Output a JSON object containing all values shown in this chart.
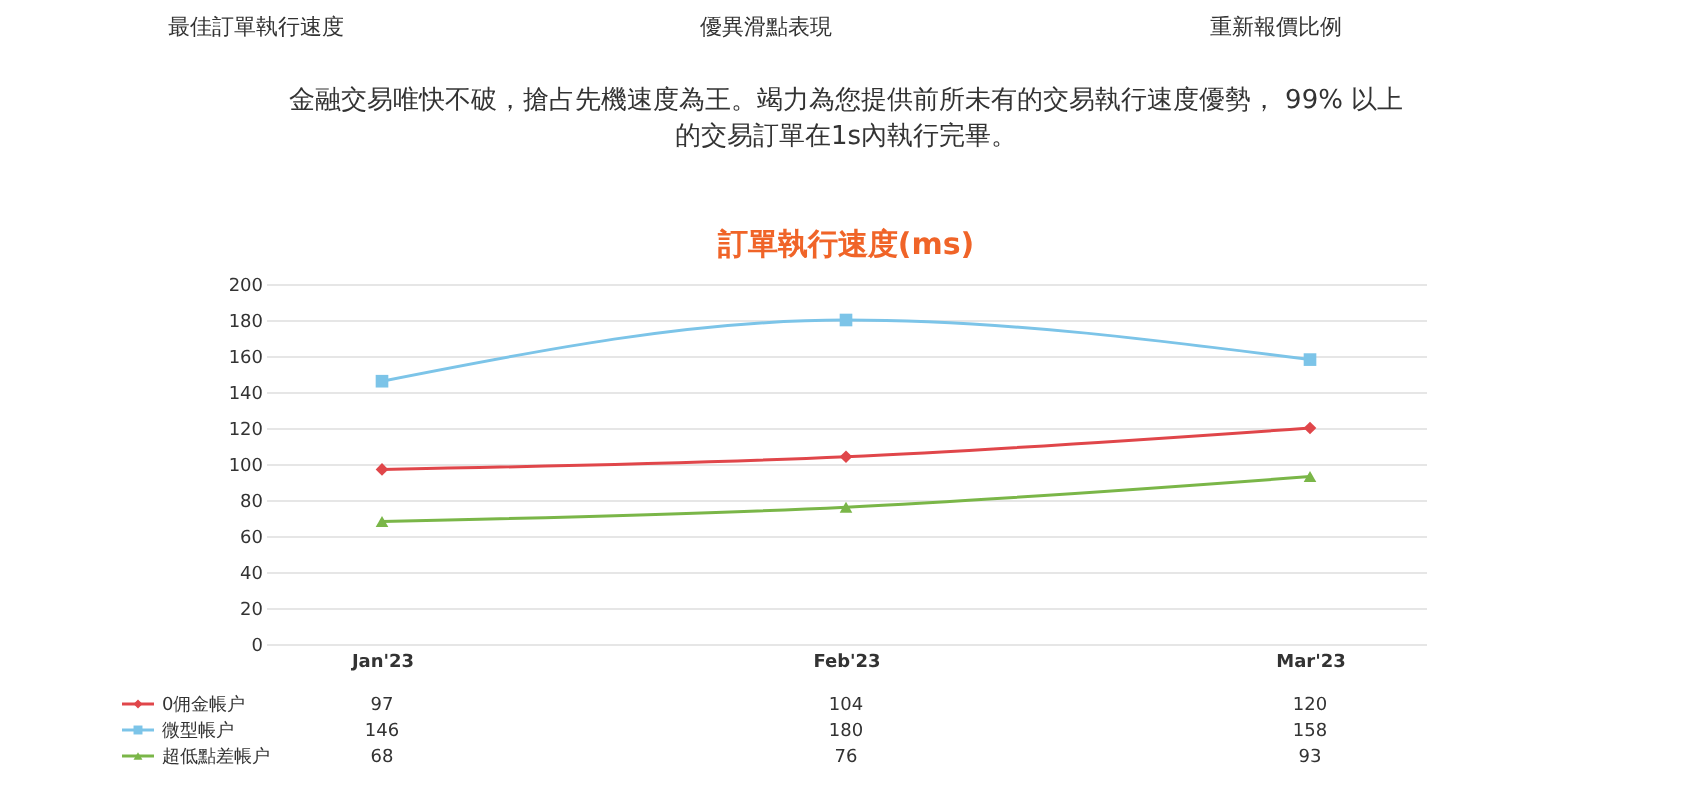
{
  "chart_data": {
    "type": "line",
    "title": "訂單執行速度(ms)",
    "annotations": [
      "最佳訂單執行速度",
      "優異滑點表現",
      "重新報價比例",
      "金融交易唯快不破，搶占先機速度為王。竭力為您提供前所未有的交易執行速度優勢， 99% 以上的交易訂單在1s內執行完畢。"
    ],
    "categories": [
      "Jan'23",
      "Feb'23",
      "Mar'23"
    ],
    "series": [
      {
        "name": "0佣金帳户",
        "color": "#e0464a",
        "values": [
          97,
          104,
          120
        ],
        "marker": "diamond"
      },
      {
        "name": "微型帳户",
        "color": "#7cc4e8",
        "values": [
          146,
          180,
          158
        ],
        "marker": "square"
      },
      {
        "name": "超低點差帳户",
        "color": "#7ab648",
        "values": [
          68,
          76,
          93
        ],
        "marker": "triangle"
      }
    ],
    "ylim": [
      0,
      200
    ],
    "yticks": [
      0,
      20,
      40,
      60,
      80,
      100,
      120,
      140,
      160,
      180,
      200
    ],
    "grid": "y",
    "legend": "bottom",
    "data_labels": true,
    "line_style": "solid"
  }
}
